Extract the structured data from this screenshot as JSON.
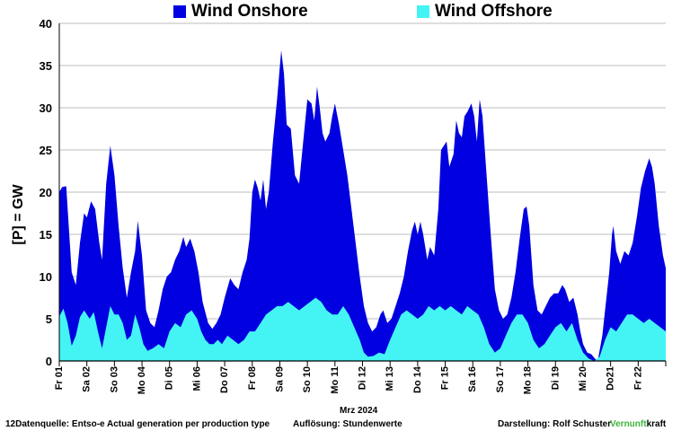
{
  "chart_data": {
    "type": "area",
    "ylabel": "[P]  = GW",
    "xlabel": "Mrz 2024",
    "ylim": [
      0,
      40
    ],
    "yticks": [
      0,
      5,
      10,
      15,
      20,
      25,
      30,
      35,
      40
    ],
    "grid": "horizontal",
    "legend_position": "top",
    "day_labels": [
      "Fr 01",
      "Sa 02",
      "So 03",
      "Mo 04",
      "Di 05",
      "Mi 06",
      "Do 07",
      "Fr 08",
      "Sa 09",
      "So 10",
      "Mo 11",
      "Di 12",
      "Mi 13",
      "Do 14",
      "Fr 15",
      "Sa 16",
      "So 17",
      "Mo 18",
      "Di 19",
      "Mi 20",
      "Do21",
      "Fr 22"
    ],
    "x_start_day": 1,
    "x_end_day": 23,
    "series": [
      {
        "name": "Wind Onshore",
        "color": "#0000e0",
        "stacked_total": [
          [
            1.0,
            20.0
          ],
          [
            1.1,
            20.6
          ],
          [
            1.25,
            20.7
          ],
          [
            1.45,
            10.5
          ],
          [
            1.6,
            9.0
          ],
          [
            1.75,
            14.0
          ],
          [
            1.9,
            17.5
          ],
          [
            2.0,
            17.0
          ],
          [
            2.15,
            18.9
          ],
          [
            2.3,
            18.0
          ],
          [
            2.45,
            14.0
          ],
          [
            2.55,
            12.0
          ],
          [
            2.7,
            21.0
          ],
          [
            2.85,
            25.5
          ],
          [
            3.0,
            22.0
          ],
          [
            3.15,
            16.0
          ],
          [
            3.3,
            11.0
          ],
          [
            3.45,
            7.5
          ],
          [
            3.6,
            10.5
          ],
          [
            3.75,
            13.0
          ],
          [
            3.85,
            16.6
          ],
          [
            4.0,
            12.5
          ],
          [
            4.15,
            6.0
          ],
          [
            4.3,
            4.5
          ],
          [
            4.45,
            4.0
          ],
          [
            4.6,
            6.0
          ],
          [
            4.75,
            8.5
          ],
          [
            4.9,
            10.0
          ],
          [
            5.05,
            10.5
          ],
          [
            5.2,
            12.0
          ],
          [
            5.35,
            13.0
          ],
          [
            5.5,
            14.7
          ],
          [
            5.6,
            13.5
          ],
          [
            5.75,
            14.5
          ],
          [
            5.9,
            13.0
          ],
          [
            6.05,
            10.5
          ],
          [
            6.2,
            7.0
          ],
          [
            6.4,
            4.5
          ],
          [
            6.55,
            3.8
          ],
          [
            6.7,
            4.5
          ],
          [
            6.85,
            5.5
          ],
          [
            7.0,
            7.5
          ],
          [
            7.2,
            9.8
          ],
          [
            7.35,
            9.0
          ],
          [
            7.5,
            8.5
          ],
          [
            7.65,
            10.5
          ],
          [
            7.8,
            12.0
          ],
          [
            7.9,
            14.5
          ],
          [
            8.0,
            20.0
          ],
          [
            8.1,
            21.5
          ],
          [
            8.2,
            20.5
          ],
          [
            8.3,
            19.0
          ],
          [
            8.4,
            21.5
          ],
          [
            8.5,
            18.0
          ],
          [
            8.6,
            20.0
          ],
          [
            8.75,
            26.0
          ],
          [
            8.9,
            31.0
          ],
          [
            9.05,
            36.8
          ],
          [
            9.15,
            34.0
          ],
          [
            9.25,
            28.0
          ],
          [
            9.4,
            27.5
          ],
          [
            9.55,
            22.0
          ],
          [
            9.7,
            21.0
          ],
          [
            9.85,
            26.0
          ],
          [
            10.0,
            31.0
          ],
          [
            10.15,
            30.5
          ],
          [
            10.25,
            28.5
          ],
          [
            10.35,
            32.5
          ],
          [
            10.45,
            30.0
          ],
          [
            10.55,
            27.0
          ],
          [
            10.65,
            26.0
          ],
          [
            10.8,
            27.0
          ],
          [
            10.9,
            29.0
          ],
          [
            11.0,
            30.5
          ],
          [
            11.15,
            28.0
          ],
          [
            11.3,
            25.0
          ],
          [
            11.45,
            22.0
          ],
          [
            11.6,
            18.0
          ],
          [
            11.75,
            14.0
          ],
          [
            11.9,
            10.0
          ],
          [
            12.05,
            6.5
          ],
          [
            12.2,
            4.5
          ],
          [
            12.35,
            3.5
          ],
          [
            12.5,
            4.0
          ],
          [
            12.65,
            5.5
          ],
          [
            12.75,
            6.0
          ],
          [
            12.9,
            4.5
          ],
          [
            13.05,
            5.0
          ],
          [
            13.2,
            6.5
          ],
          [
            13.35,
            8.0
          ],
          [
            13.5,
            10.0
          ],
          [
            13.65,
            13.0
          ],
          [
            13.8,
            15.5
          ],
          [
            13.9,
            16.5
          ],
          [
            14.0,
            15.0
          ],
          [
            14.1,
            16.5
          ],
          [
            14.2,
            15.0
          ],
          [
            14.35,
            12.0
          ],
          [
            14.45,
            13.5
          ],
          [
            14.6,
            12.5
          ],
          [
            14.75,
            18.0
          ],
          [
            14.85,
            25.0
          ],
          [
            14.95,
            25.5
          ],
          [
            15.05,
            26.0
          ],
          [
            15.15,
            23.0
          ],
          [
            15.3,
            24.5
          ],
          [
            15.4,
            28.5
          ],
          [
            15.5,
            27.0
          ],
          [
            15.6,
            26.5
          ],
          [
            15.7,
            29.0
          ],
          [
            15.8,
            29.5
          ],
          [
            15.95,
            30.5
          ],
          [
            16.05,
            29.0
          ],
          [
            16.15,
            26.0
          ],
          [
            16.25,
            31.0
          ],
          [
            16.35,
            29.0
          ],
          [
            16.5,
            22.0
          ],
          [
            16.65,
            15.0
          ],
          [
            16.8,
            8.5
          ],
          [
            16.95,
            6.0
          ],
          [
            17.1,
            5.0
          ],
          [
            17.25,
            5.5
          ],
          [
            17.4,
            7.5
          ],
          [
            17.55,
            10.5
          ],
          [
            17.7,
            14.5
          ],
          [
            17.85,
            18.0
          ],
          [
            17.95,
            18.3
          ],
          [
            18.05,
            16.0
          ],
          [
            18.2,
            9.0
          ],
          [
            18.35,
            6.0
          ],
          [
            18.5,
            5.5
          ],
          [
            18.65,
            6.5
          ],
          [
            18.8,
            7.5
          ],
          [
            18.95,
            8.0
          ],
          [
            19.1,
            8.0
          ],
          [
            19.25,
            9.0
          ],
          [
            19.35,
            8.5
          ],
          [
            19.5,
            7.0
          ],
          [
            19.65,
            7.5
          ],
          [
            19.8,
            5.5
          ],
          [
            19.9,
            3.5
          ],
          [
            20.0,
            2.0
          ],
          [
            20.15,
            1.0
          ],
          [
            20.3,
            0.8
          ],
          [
            20.45,
            0.2
          ],
          [
            20.55,
            0.3
          ],
          [
            20.7,
            3.0
          ],
          [
            20.85,
            7.5
          ],
          [
            20.95,
            10.5
          ],
          [
            21.05,
            15.0
          ],
          [
            21.1,
            16.0
          ],
          [
            21.2,
            13.0
          ],
          [
            21.35,
            11.5
          ],
          [
            21.5,
            13.0
          ],
          [
            21.65,
            12.5
          ],
          [
            21.8,
            14.0
          ],
          [
            21.95,
            17.0
          ],
          [
            22.1,
            20.5
          ],
          [
            22.25,
            22.5
          ],
          [
            22.4,
            24.0
          ],
          [
            22.5,
            23.0
          ],
          [
            22.6,
            21.0
          ],
          [
            22.75,
            16.0
          ],
          [
            22.9,
            12.5
          ],
          [
            23.0,
            11.0
          ]
        ]
      },
      {
        "name": "Wind Offshore",
        "color": "#44f4f4",
        "values": [
          [
            1.0,
            5.3
          ],
          [
            1.15,
            6.2
          ],
          [
            1.3,
            4.5
          ],
          [
            1.45,
            1.8
          ],
          [
            1.6,
            3.0
          ],
          [
            1.75,
            5.2
          ],
          [
            1.9,
            6.0
          ],
          [
            2.1,
            5.0
          ],
          [
            2.25,
            5.8
          ],
          [
            2.4,
            3.5
          ],
          [
            2.55,
            1.5
          ],
          [
            2.7,
            4.0
          ],
          [
            2.85,
            6.5
          ],
          [
            3.0,
            5.5
          ],
          [
            3.15,
            5.5
          ],
          [
            3.3,
            4.5
          ],
          [
            3.45,
            2.5
          ],
          [
            3.6,
            3.0
          ],
          [
            3.75,
            5.5
          ],
          [
            3.9,
            4.0
          ],
          [
            4.05,
            2.0
          ],
          [
            4.2,
            1.2
          ],
          [
            4.4,
            1.5
          ],
          [
            4.6,
            2.0
          ],
          [
            4.8,
            1.5
          ],
          [
            5.0,
            3.5
          ],
          [
            5.2,
            4.5
          ],
          [
            5.4,
            4.0
          ],
          [
            5.6,
            5.5
          ],
          [
            5.8,
            6.0
          ],
          [
            6.0,
            5.0
          ],
          [
            6.15,
            3.5
          ],
          [
            6.3,
            2.5
          ],
          [
            6.45,
            2.0
          ],
          [
            6.6,
            2.0
          ],
          [
            6.75,
            2.5
          ],
          [
            6.9,
            2.0
          ],
          [
            7.1,
            3.0
          ],
          [
            7.3,
            2.5
          ],
          [
            7.5,
            2.0
          ],
          [
            7.7,
            2.5
          ],
          [
            7.9,
            3.5
          ],
          [
            8.1,
            3.5
          ],
          [
            8.3,
            4.5
          ],
          [
            8.5,
            5.5
          ],
          [
            8.7,
            6.0
          ],
          [
            8.9,
            6.5
          ],
          [
            9.1,
            6.5
          ],
          [
            9.3,
            7.0
          ],
          [
            9.5,
            6.5
          ],
          [
            9.7,
            6.0
          ],
          [
            9.9,
            6.5
          ],
          [
            10.1,
            7.0
          ],
          [
            10.3,
            7.5
          ],
          [
            10.5,
            7.0
          ],
          [
            10.7,
            6.0
          ],
          [
            10.9,
            5.5
          ],
          [
            11.1,
            5.5
          ],
          [
            11.3,
            6.5
          ],
          [
            11.5,
            5.5
          ],
          [
            11.7,
            4.0
          ],
          [
            11.9,
            2.5
          ],
          [
            12.05,
            1.0
          ],
          [
            12.2,
            0.5
          ],
          [
            12.4,
            0.6
          ],
          [
            12.6,
            1.0
          ],
          [
            12.8,
            0.8
          ],
          [
            13.0,
            2.5
          ],
          [
            13.2,
            4.0
          ],
          [
            13.4,
            5.5
          ],
          [
            13.6,
            6.0
          ],
          [
            13.8,
            5.5
          ],
          [
            14.0,
            5.0
          ],
          [
            14.2,
            5.5
          ],
          [
            14.4,
            6.5
          ],
          [
            14.6,
            6.0
          ],
          [
            14.8,
            6.5
          ],
          [
            15.0,
            6.0
          ],
          [
            15.2,
            6.5
          ],
          [
            15.4,
            6.0
          ],
          [
            15.6,
            5.5
          ],
          [
            15.8,
            6.5
          ],
          [
            16.0,
            6.0
          ],
          [
            16.2,
            5.5
          ],
          [
            16.4,
            4.0
          ],
          [
            16.6,
            2.0
          ],
          [
            16.8,
            1.0
          ],
          [
            17.0,
            1.5
          ],
          [
            17.2,
            3.0
          ],
          [
            17.4,
            4.5
          ],
          [
            17.6,
            5.5
          ],
          [
            17.8,
            5.5
          ],
          [
            18.0,
            4.5
          ],
          [
            18.2,
            2.5
          ],
          [
            18.4,
            1.5
          ],
          [
            18.6,
            2.0
          ],
          [
            18.8,
            3.0
          ],
          [
            19.0,
            4.0
          ],
          [
            19.2,
            4.5
          ],
          [
            19.4,
            3.5
          ],
          [
            19.6,
            4.5
          ],
          [
            19.8,
            2.5
          ],
          [
            20.0,
            1.0
          ],
          [
            20.2,
            0.3
          ],
          [
            20.4,
            0.0
          ],
          [
            20.6,
            0.5
          ],
          [
            20.8,
            2.5
          ],
          [
            21.0,
            4.0
          ],
          [
            21.2,
            3.5
          ],
          [
            21.4,
            4.5
          ],
          [
            21.6,
            5.5
          ],
          [
            21.8,
            5.5
          ],
          [
            22.0,
            5.0
          ],
          [
            22.2,
            4.5
          ],
          [
            22.4,
            5.0
          ],
          [
            22.6,
            4.5
          ],
          [
            22.8,
            4.0
          ],
          [
            23.0,
            3.5
          ]
        ]
      }
    ]
  },
  "legend": {
    "onshore_label": "Wind Onshore",
    "offshore_label": "Wind Offshore",
    "onshore_color": "#0000e0",
    "offshore_color": "#44f4f4"
  },
  "footer": {
    "source": "12Datenquelle: Entso-e  Actual generation per production type",
    "resolution": "Auflösung: Stundenwerte",
    "credit": "Darstellung:  Rolf Schuster",
    "brand_green": "Vernunft",
    "brand_rest": "kraft",
    "brand_color": "#3cb43c"
  }
}
